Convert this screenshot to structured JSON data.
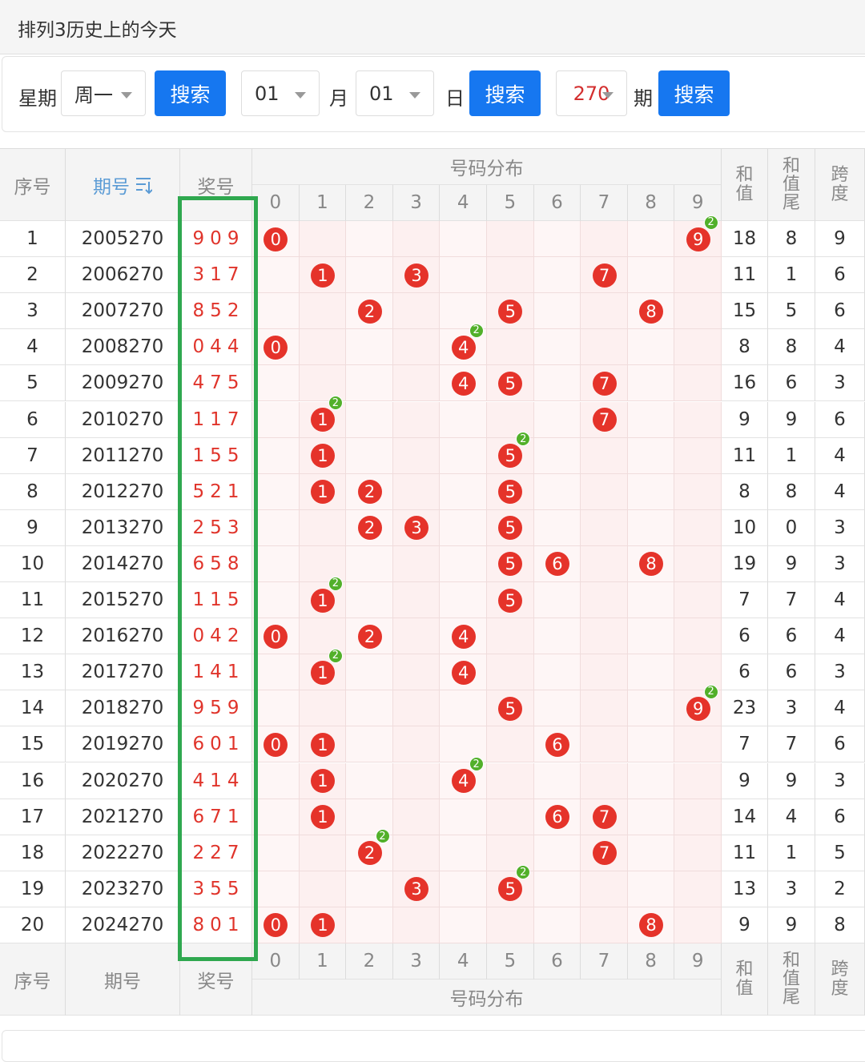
{
  "header": {
    "title": "排列3历史上的今天"
  },
  "search": {
    "weekday_label": "星期",
    "weekday": "周一",
    "button": "搜索",
    "month": "01",
    "month_label": "月",
    "day": "01",
    "day_label": "日",
    "issue": "270",
    "issue_label": "期"
  },
  "table": {
    "headers": {
      "index": "序号",
      "issue": "期号",
      "number": "奖号",
      "distribution": "号码分布",
      "digits": [
        "0",
        "1",
        "2",
        "3",
        "4",
        "5",
        "6",
        "7",
        "8",
        "9"
      ],
      "sum": "和值",
      "sum_tail": "和值尾",
      "span": "跨度"
    },
    "rows": [
      {
        "index": "1",
        "issue": "2005270",
        "number": "909",
        "balls": [
          {
            "digit": "0"
          },
          {
            "digit": "9",
            "count": "2"
          }
        ],
        "sum": "18",
        "sum_tail": "8",
        "span": "9"
      },
      {
        "index": "2",
        "issue": "2006270",
        "number": "317",
        "balls": [
          {
            "digit": "1"
          },
          {
            "digit": "3"
          },
          {
            "digit": "7"
          }
        ],
        "sum": "11",
        "sum_tail": "1",
        "span": "6"
      },
      {
        "index": "3",
        "issue": "2007270",
        "number": "852",
        "balls": [
          {
            "digit": "2"
          },
          {
            "digit": "5"
          },
          {
            "digit": "8"
          }
        ],
        "sum": "15",
        "sum_tail": "5",
        "span": "6"
      },
      {
        "index": "4",
        "issue": "2008270",
        "number": "044",
        "balls": [
          {
            "digit": "0"
          },
          {
            "digit": "4",
            "count": "2"
          }
        ],
        "sum": "8",
        "sum_tail": "8",
        "span": "4"
      },
      {
        "index": "5",
        "issue": "2009270",
        "number": "475",
        "balls": [
          {
            "digit": "4"
          },
          {
            "digit": "5"
          },
          {
            "digit": "7"
          }
        ],
        "sum": "16",
        "sum_tail": "6",
        "span": "3"
      },
      {
        "index": "6",
        "issue": "2010270",
        "number": "117",
        "balls": [
          {
            "digit": "1",
            "count": "2"
          },
          {
            "digit": "7"
          }
        ],
        "sum": "9",
        "sum_tail": "9",
        "span": "6"
      },
      {
        "index": "7",
        "issue": "2011270",
        "number": "155",
        "balls": [
          {
            "digit": "1"
          },
          {
            "digit": "5",
            "count": "2"
          }
        ],
        "sum": "11",
        "sum_tail": "1",
        "span": "4"
      },
      {
        "index": "8",
        "issue": "2012270",
        "number": "521",
        "balls": [
          {
            "digit": "1"
          },
          {
            "digit": "2"
          },
          {
            "digit": "5"
          }
        ],
        "sum": "8",
        "sum_tail": "8",
        "span": "4"
      },
      {
        "index": "9",
        "issue": "2013270",
        "number": "253",
        "balls": [
          {
            "digit": "2"
          },
          {
            "digit": "3"
          },
          {
            "digit": "5"
          }
        ],
        "sum": "10",
        "sum_tail": "0",
        "span": "3"
      },
      {
        "index": "10",
        "issue": "2014270",
        "number": "658",
        "balls": [
          {
            "digit": "5"
          },
          {
            "digit": "6"
          },
          {
            "digit": "8"
          }
        ],
        "sum": "19",
        "sum_tail": "9",
        "span": "3"
      },
      {
        "index": "11",
        "issue": "2015270",
        "number": "115",
        "balls": [
          {
            "digit": "1",
            "count": "2"
          },
          {
            "digit": "5"
          }
        ],
        "sum": "7",
        "sum_tail": "7",
        "span": "4"
      },
      {
        "index": "12",
        "issue": "2016270",
        "number": "042",
        "balls": [
          {
            "digit": "0"
          },
          {
            "digit": "2"
          },
          {
            "digit": "4"
          }
        ],
        "sum": "6",
        "sum_tail": "6",
        "span": "4"
      },
      {
        "index": "13",
        "issue": "2017270",
        "number": "141",
        "balls": [
          {
            "digit": "1",
            "count": "2"
          },
          {
            "digit": "4"
          }
        ],
        "sum": "6",
        "sum_tail": "6",
        "span": "3"
      },
      {
        "index": "14",
        "issue": "2018270",
        "number": "959",
        "balls": [
          {
            "digit": "5"
          },
          {
            "digit": "9",
            "count": "2"
          }
        ],
        "sum": "23",
        "sum_tail": "3",
        "span": "4"
      },
      {
        "index": "15",
        "issue": "2019270",
        "number": "601",
        "balls": [
          {
            "digit": "0"
          },
          {
            "digit": "1"
          },
          {
            "digit": "6"
          }
        ],
        "sum": "7",
        "sum_tail": "7",
        "span": "6"
      },
      {
        "index": "16",
        "issue": "2020270",
        "number": "414",
        "balls": [
          {
            "digit": "1"
          },
          {
            "digit": "4",
            "count": "2"
          }
        ],
        "sum": "9",
        "sum_tail": "9",
        "span": "3"
      },
      {
        "index": "17",
        "issue": "2021270",
        "number": "671",
        "balls": [
          {
            "digit": "1"
          },
          {
            "digit": "6"
          },
          {
            "digit": "7"
          }
        ],
        "sum": "14",
        "sum_tail": "4",
        "span": "6"
      },
      {
        "index": "18",
        "issue": "2022270",
        "number": "227",
        "balls": [
          {
            "digit": "2",
            "count": "2"
          },
          {
            "digit": "7"
          }
        ],
        "sum": "11",
        "sum_tail": "1",
        "span": "5"
      },
      {
        "index": "19",
        "issue": "2023270",
        "number": "355",
        "balls": [
          {
            "digit": "3"
          },
          {
            "digit": "5",
            "count": "2"
          }
        ],
        "sum": "13",
        "sum_tail": "3",
        "span": "2"
      },
      {
        "index": "20",
        "issue": "2024270",
        "number": "801",
        "balls": [
          {
            "digit": "0"
          },
          {
            "digit": "1"
          },
          {
            "digit": "8"
          }
        ],
        "sum": "9",
        "sum_tail": "9",
        "span": "8"
      }
    ]
  }
}
